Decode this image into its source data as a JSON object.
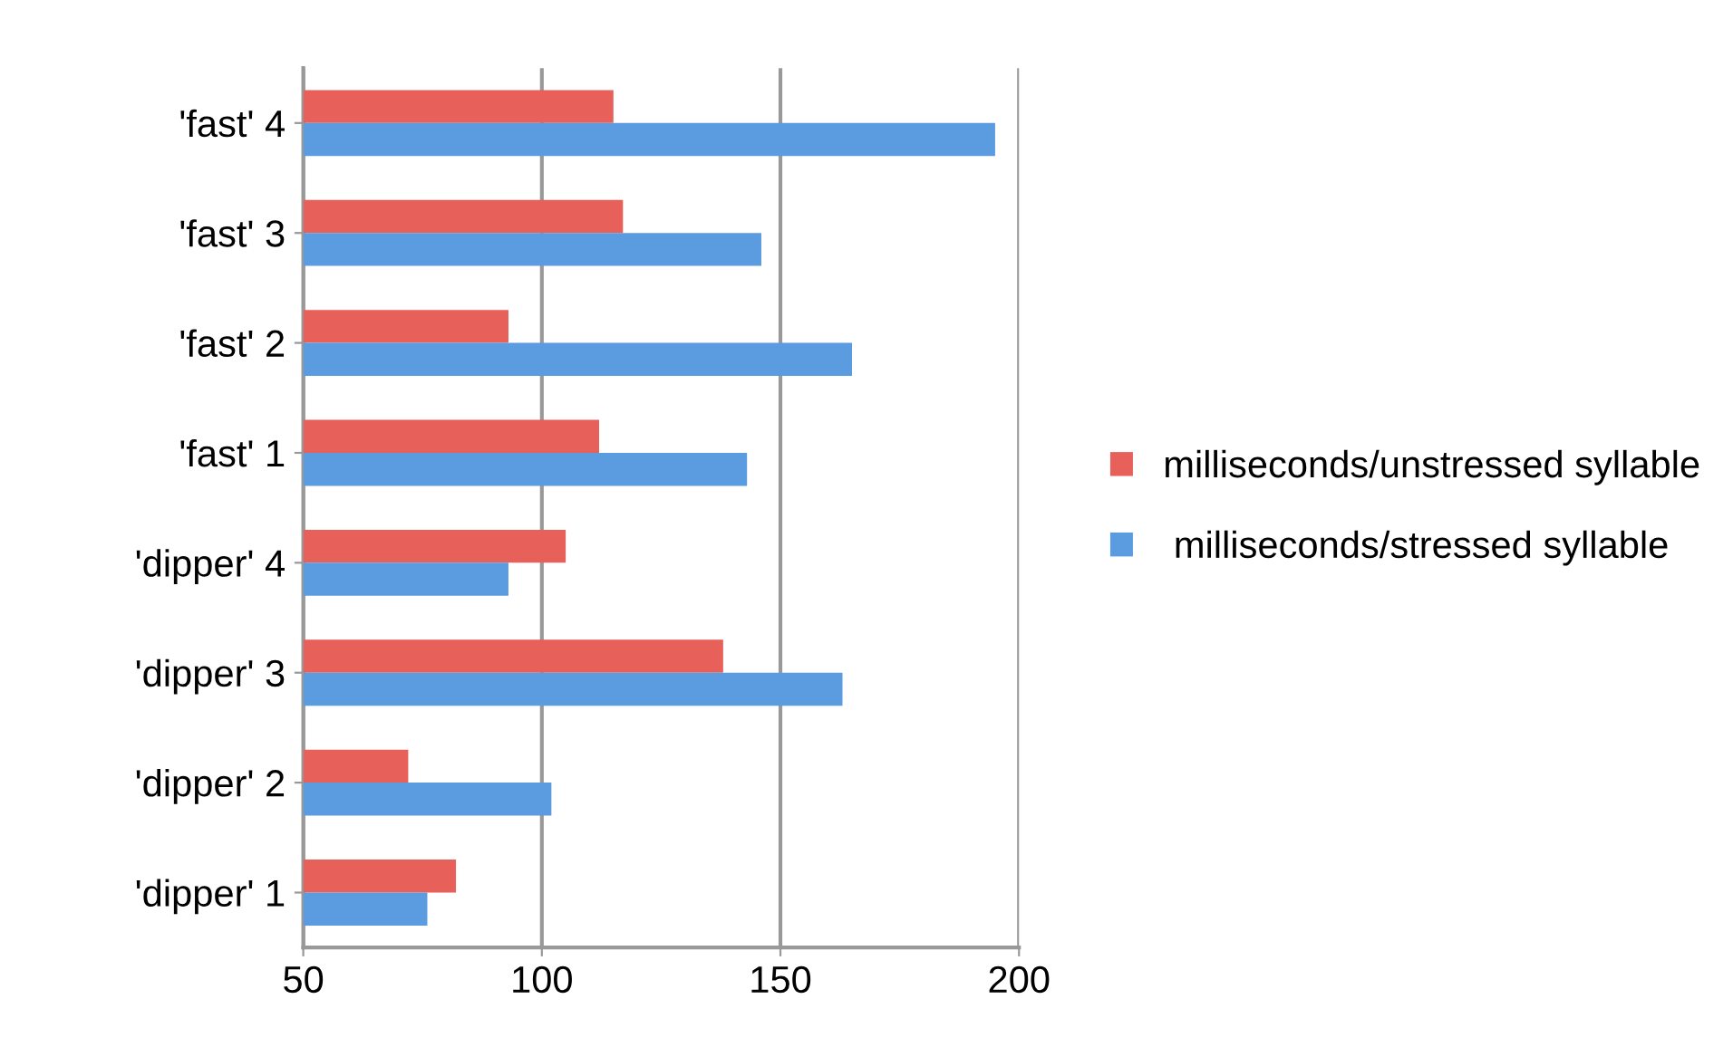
{
  "chart_data": {
    "type": "bar",
    "orientation": "horizontal",
    "categories": [
      "'fast' 4",
      "'fast' 3",
      "'fast' 2",
      "'fast' 1",
      "'dipper' 4",
      "'dipper' 3",
      "'dipper' 2",
      "'dipper' 1"
    ],
    "series": [
      {
        "name": "milliseconds/unstressed syllable",
        "color": "#e8605a",
        "values": [
          115,
          117,
          93,
          112,
          105,
          138,
          72,
          82
        ]
      },
      {
        "name": " milliseconds/stressed syllable",
        "color": "#5b9be0",
        "values": [
          195,
          146,
          165,
          143,
          93,
          163,
          102,
          76
        ]
      }
    ],
    "xlim": [
      50,
      200
    ],
    "xticks": [
      50,
      100,
      150,
      200
    ],
    "grid": "x",
    "legend": "right"
  }
}
